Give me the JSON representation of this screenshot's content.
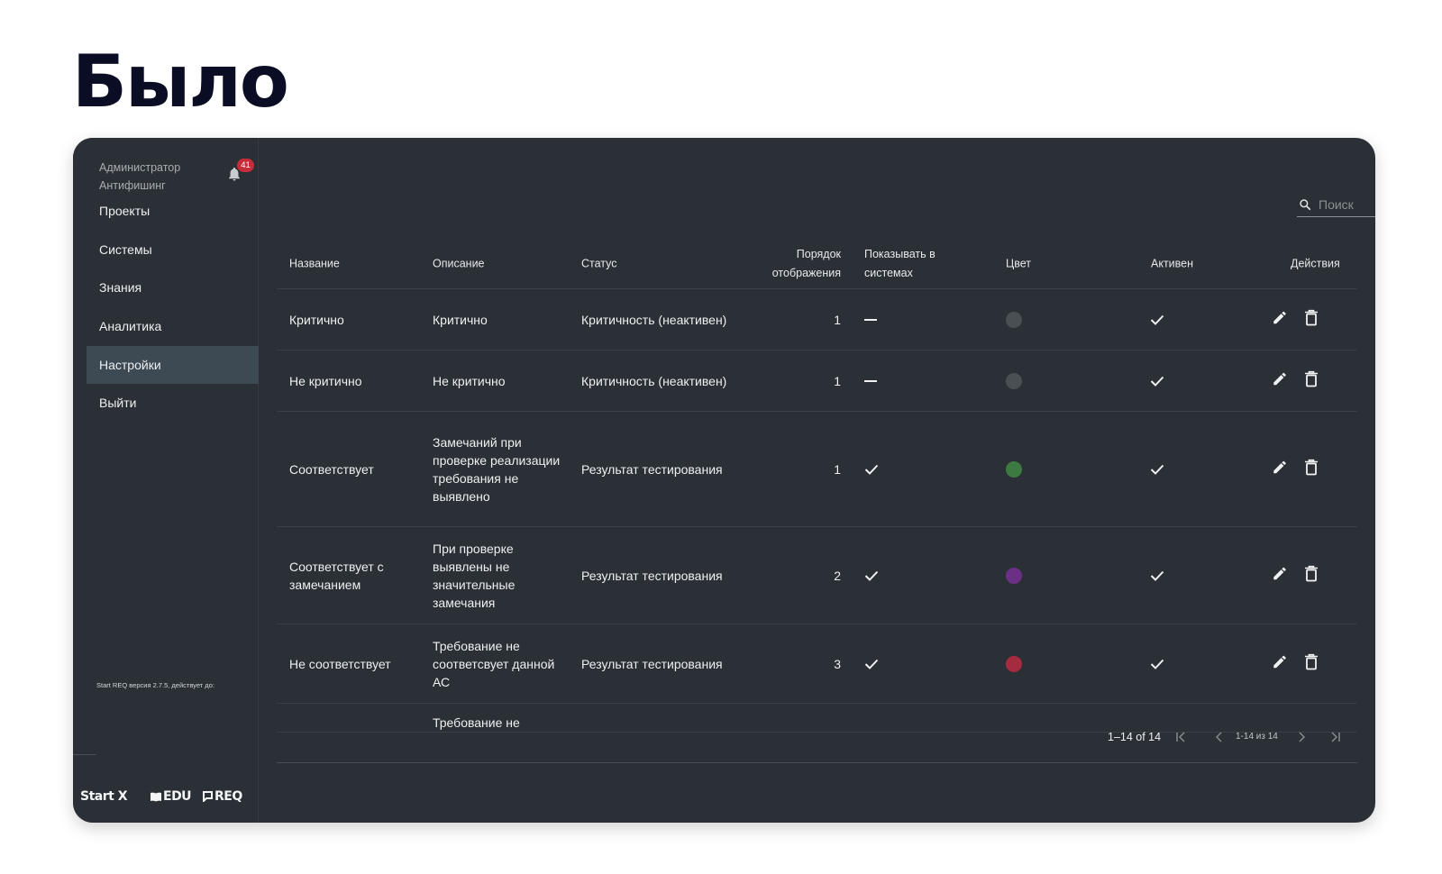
{
  "heading": "Было",
  "sidebar": {
    "user_role": "Администратор",
    "user_org": "Антифишинг",
    "notification_count": "41",
    "nav": [
      {
        "label": "Проекты",
        "active": false
      },
      {
        "label": "Системы",
        "active": false
      },
      {
        "label": "Знания",
        "active": false
      },
      {
        "label": "Аналитика",
        "active": false
      },
      {
        "label": "Настройки",
        "active": true
      },
      {
        "label": "Выйти",
        "active": false
      }
    ],
    "version_text": "Start REQ версия 2.7.5, действует до:",
    "brands": [
      "Start X",
      "EDU",
      "REQ"
    ]
  },
  "search": {
    "placeholder": "Поиск"
  },
  "table": {
    "columns": {
      "name": "Название",
      "description": "Описание",
      "status": "Статус",
      "order_line1": "Порядок",
      "order_line2": "отображения",
      "show_line1": "Показывать в",
      "show_line2": "системах",
      "color": "Цвет",
      "active": "Активен",
      "actions": "Действия"
    },
    "rows": [
      {
        "name": "Критично",
        "description": "Критично",
        "status": "Критичность (неактивен)",
        "order": "1",
        "show_in_systems": false,
        "color": "#4a4f54",
        "active": true
      },
      {
        "name": "Не критично",
        "description": "Не критично",
        "status": "Критичность (неактивен)",
        "order": "1",
        "show_in_systems": false,
        "color": "#4a4f54",
        "active": true
      },
      {
        "name": "Соответствует",
        "description": "Замечаний при проверке реализации требования не выявлено",
        "status": "Результат тестирования",
        "order": "1",
        "show_in_systems": true,
        "color": "#3d7a42",
        "active": true
      },
      {
        "name": "Соответствует с замечанием",
        "description": "При проверке выявлены не значительные замечания",
        "status": "Результат тестирования",
        "order": "2",
        "show_in_systems": true,
        "color": "#6b2f86",
        "active": true
      },
      {
        "name": "Не соответствует",
        "description": "Требование не соответсвует данной АС",
        "status": "Результат тестирования",
        "order": "3",
        "show_in_systems": true,
        "color": "#a52c40",
        "active": true
      }
    ],
    "partial_row": {
      "description": "Требование не"
    }
  },
  "pagination": {
    "range": "1–14 of 14",
    "page_label": "1-14 из 14"
  }
}
